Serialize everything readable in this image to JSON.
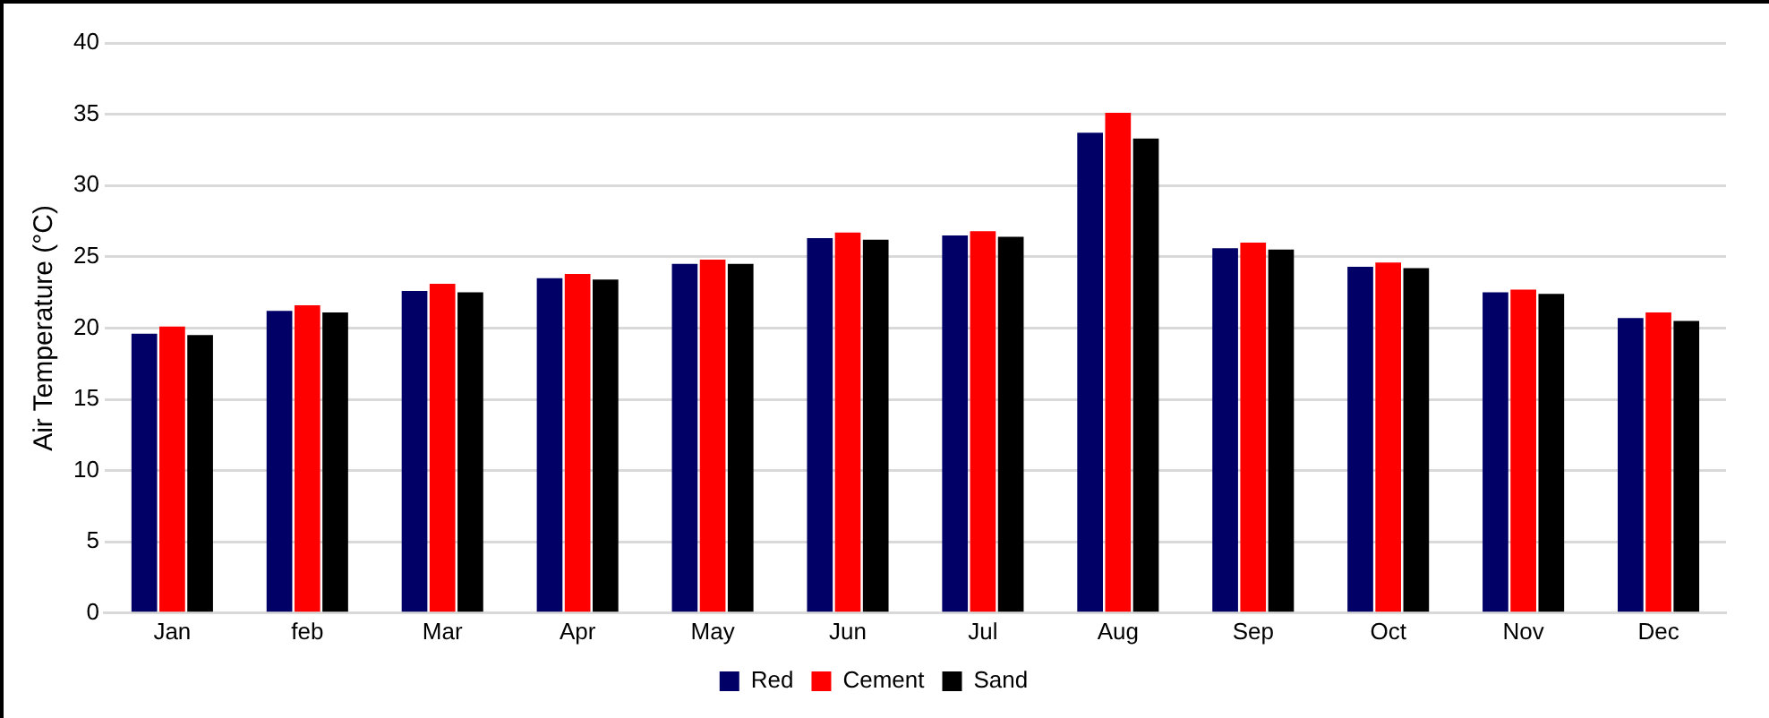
{
  "chart_data": {
    "type": "bar",
    "ylabel": "Air Temperature (°C)",
    "categories": [
      "Jan",
      "feb",
      "Mar",
      "Apr",
      "May",
      "Jun",
      "Jul",
      "Aug",
      "Sep",
      "Oct",
      "Nov",
      "Dec"
    ],
    "series": [
      {
        "name": "Red",
        "color": "#000066",
        "values": [
          19.6,
          21.2,
          22.6,
          23.5,
          24.5,
          26.3,
          26.5,
          33.7,
          25.6,
          24.3,
          22.5,
          20.7
        ]
      },
      {
        "name": "Cement",
        "color": "#ff0000",
        "values": [
          20.1,
          21.6,
          23.1,
          23.8,
          24.8,
          26.7,
          26.8,
          35.1,
          26.0,
          24.6,
          22.7,
          21.1
        ]
      },
      {
        "name": "Sand",
        "color": "#000000",
        "values": [
          19.5,
          21.1,
          22.5,
          23.4,
          24.5,
          26.2,
          26.4,
          33.3,
          25.5,
          24.2,
          22.4,
          20.5
        ]
      }
    ],
    "ylim": [
      0,
      40
    ],
    "yticks": [
      0,
      5,
      10,
      15,
      20,
      25,
      30,
      35,
      40
    ],
    "grid": "y",
    "legend": "bottom"
  }
}
